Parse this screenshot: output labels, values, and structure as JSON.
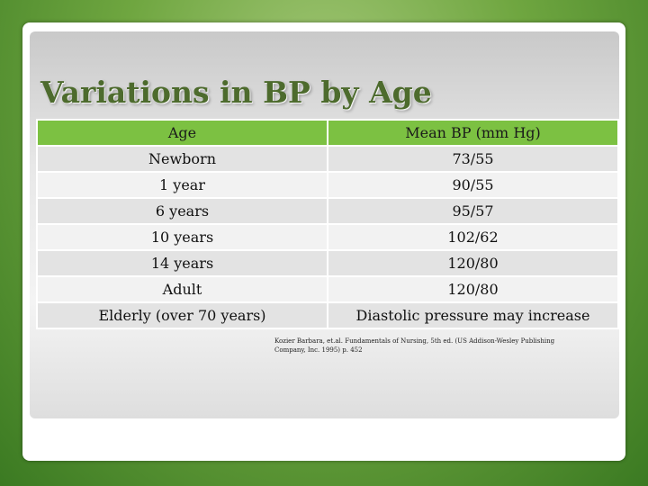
{
  "title": "Variations in BP by Age",
  "table": {
    "header": [
      "Age",
      "Mean BP (mm Hg)"
    ],
    "rows": [
      [
        "Newborn",
        "73/55"
      ],
      [
        "1 year",
        "90/55"
      ],
      [
        "6 years",
        "95/57"
      ],
      [
        "10 years",
        "102/62"
      ],
      [
        "14 years",
        "120/80"
      ],
      [
        "Adult",
        "120/80"
      ],
      [
        "Elderly (over 70 years)",
        "Diastolic pressure may increase"
      ]
    ]
  },
  "citation": "Kozier Barbara, et.al. Fundamentals of Nursing, 5th ed. (US Addison-Wesley Publishing Company, Inc. 1995) p. 452"
}
